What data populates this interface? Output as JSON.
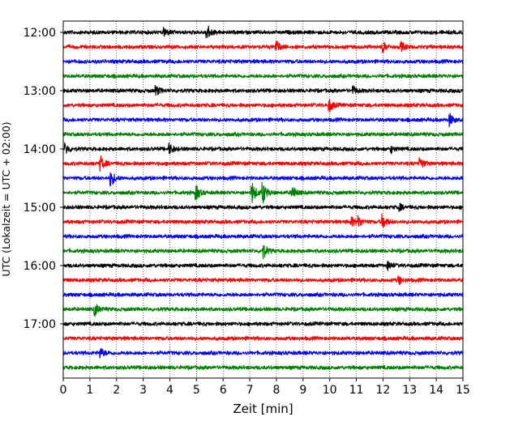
{
  "chart_data": {
    "type": "line",
    "title": "",
    "xlabel": "Zeit  [min]",
    "ylabel": "UTC (Lokalzeit = UTC + 02:00)",
    "xlim": [
      0,
      15
    ],
    "x_ticks": [
      "0",
      "1",
      "2",
      "3",
      "4",
      "5",
      "6",
      "7",
      "8",
      "9",
      "10",
      "11",
      "12",
      "13",
      "14",
      "15"
    ],
    "y_ticks": [
      "12:00",
      "13:00",
      "14:00",
      "15:00",
      "16:00",
      "17:00"
    ],
    "grid": "vertical dotted",
    "legend": "none",
    "colors": [
      "#000000",
      "#ff0000",
      "#0000ff",
      "#008000"
    ],
    "minutes_per_trace": 15,
    "start_time": "12:00",
    "series": [
      {
        "start": "12:00",
        "color": "#000000",
        "events": [
          [
            3.8,
            1.0
          ],
          [
            5.4,
            2.0
          ]
        ]
      },
      {
        "start": "12:15",
        "color": "#ff0000",
        "events": [
          [
            8.0,
            1.4
          ],
          [
            12.0,
            1.1
          ],
          [
            12.7,
            1.0
          ]
        ]
      },
      {
        "start": "12:30",
        "color": "#0000ff",
        "events": []
      },
      {
        "start": "12:45",
        "color": "#008000",
        "events": []
      },
      {
        "start": "13:00",
        "color": "#000000",
        "events": [
          [
            3.5,
            1.0
          ],
          [
            10.9,
            0.8
          ]
        ]
      },
      {
        "start": "13:15",
        "color": "#ff0000",
        "events": [
          [
            10.0,
            1.4
          ]
        ]
      },
      {
        "start": "13:30",
        "color": "#0000ff",
        "events": [
          [
            14.5,
            1.4
          ]
        ]
      },
      {
        "start": "13:45",
        "color": "#008000",
        "events": []
      },
      {
        "start": "14:00",
        "color": "#000000",
        "events": [
          [
            0.1,
            1.1
          ],
          [
            4.0,
            1.1
          ],
          [
            12.3,
            0.8
          ]
        ]
      },
      {
        "start": "14:15",
        "color": "#ff0000",
        "events": [
          [
            1.4,
            1.7
          ],
          [
            13.4,
            1.3
          ]
        ]
      },
      {
        "start": "14:30",
        "color": "#0000ff",
        "events": [
          [
            1.8,
            1.8
          ]
        ]
      },
      {
        "start": "14:45",
        "color": "#008000",
        "events": [
          [
            5.0,
            1.6
          ],
          [
            7.1,
            2.3
          ],
          [
            7.5,
            2.4
          ],
          [
            8.6,
            1.7
          ]
        ]
      },
      {
        "start": "15:00",
        "color": "#000000",
        "events": [
          [
            12.6,
            0.8
          ]
        ]
      },
      {
        "start": "15:15",
        "color": "#ff0000",
        "events": [
          [
            10.8,
            1.1
          ],
          [
            11.1,
            1.1
          ],
          [
            12.0,
            1.6
          ]
        ]
      },
      {
        "start": "15:30",
        "color": "#0000ff",
        "events": []
      },
      {
        "start": "15:45",
        "color": "#008000",
        "events": [
          [
            7.5,
            1.8
          ]
        ]
      },
      {
        "start": "16:00",
        "color": "#000000",
        "events": [
          [
            12.2,
            0.9
          ]
        ]
      },
      {
        "start": "16:15",
        "color": "#ff0000",
        "events": [
          [
            12.6,
            0.8
          ]
        ]
      },
      {
        "start": "16:30",
        "color": "#0000ff",
        "events": []
      },
      {
        "start": "16:45",
        "color": "#008000",
        "events": [
          [
            1.2,
            1.4
          ]
        ]
      },
      {
        "start": "17:00",
        "color": "#000000",
        "events": []
      },
      {
        "start": "17:15",
        "color": "#ff0000",
        "events": []
      },
      {
        "start": "17:30",
        "color": "#0000ff",
        "events": [
          [
            1.4,
            1.2
          ]
        ]
      },
      {
        "start": "17:45",
        "color": "#008000",
        "events": []
      }
    ]
  }
}
